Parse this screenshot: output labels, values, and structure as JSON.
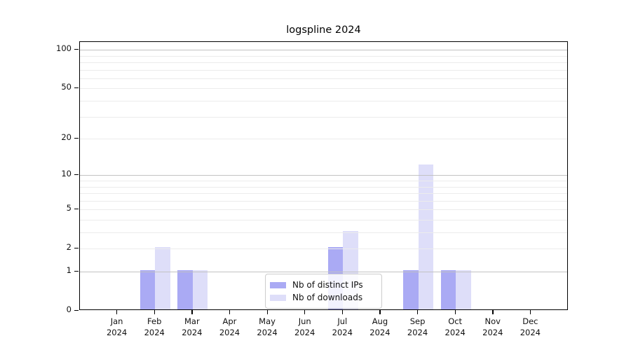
{
  "title": "logspline 2024",
  "chart_data": {
    "type": "bar",
    "title": "logspline 2024",
    "categories": [
      "Jan 2024",
      "Feb 2024",
      "Mar 2024",
      "Apr 2024",
      "May 2024",
      "Jun 2024",
      "Jul 2024",
      "Aug 2024",
      "Sep 2024",
      "Oct 2024",
      "Nov 2024",
      "Dec 2024"
    ],
    "months": [
      "Jan",
      "Feb",
      "Mar",
      "Apr",
      "May",
      "Jun",
      "Jul",
      "Aug",
      "Sep",
      "Oct",
      "Nov",
      "Dec"
    ],
    "year": "2024",
    "series": [
      {
        "name": "Nb of distinct IPs",
        "color": "#aaaaf4",
        "values": [
          0,
          1,
          1,
          0,
          0,
          0,
          2,
          0,
          1,
          1,
          0,
          0
        ]
      },
      {
        "name": "Nb of downloads",
        "color": "#dedef9",
        "values": [
          0,
          2,
          1,
          0,
          0,
          0,
          3,
          0,
          12,
          1,
          0,
          0
        ]
      }
    ],
    "xlabel": "",
    "ylabel": "",
    "y_scale": "log10(value+1)",
    "y_tick_labels": [
      100,
      50,
      20,
      10,
      5,
      2,
      1,
      0
    ],
    "major_gridlines": [
      1,
      10,
      100
    ],
    "minor_gridlines": [
      2,
      3,
      4,
      5,
      6,
      7,
      8,
      9,
      20,
      30,
      40,
      50,
      60,
      70,
      80,
      90
    ],
    "ylim": [
      0,
      115
    ],
    "grid": true,
    "legend_position": "lower center (inside plot)"
  },
  "legend": {
    "items": [
      {
        "label": "Nb of distinct IPs",
        "color": "#aaaaf4"
      },
      {
        "label": "Nb of downloads",
        "color": "#dedef9"
      }
    ]
  },
  "colors": {
    "bar_dark": "#aaaaf4",
    "bar_light": "#dedef9",
    "grid_major": "#c2c2c2",
    "grid_minor": "#ececec",
    "axis": "#000000",
    "text": "#111111",
    "legend_border": "#cccccc"
  }
}
